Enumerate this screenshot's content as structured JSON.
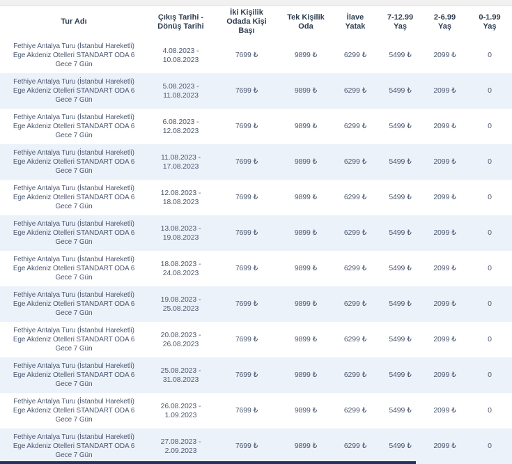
{
  "table": {
    "columns": [
      {
        "label": "Tur Adı"
      },
      {
        "label": "Çıkış Tarihi -\nDönüş Tarihi"
      },
      {
        "label": "İki Kişilik\nOdada Kişi\nBaşı"
      },
      {
        "label": "Tek Kişilik\nOda"
      },
      {
        "label": "İlave\nYatak"
      },
      {
        "label": "7-12.99\nYaş"
      },
      {
        "label": "2-6.99\nYaş"
      },
      {
        "label": "0-1.99\nYaş"
      }
    ],
    "rows": [
      {
        "tour": "Fethiye Antalya Turu (İstanbul Hareketli)\nEge Akdeniz Otelleri STANDART ODA 6\nGece 7 Gün",
        "dates": "4.08.2023 -\n10.08.2023",
        "double_pp": "7699 ₺",
        "single": "9899 ₺",
        "extra_bed": "6299 ₺",
        "age_7_12": "5499 ₺",
        "age_2_6": "2099 ₺",
        "age_0_1": "0"
      },
      {
        "tour": "Fethiye Antalya Turu (İstanbul Hareketli)\nEge Akdeniz Otelleri STANDART ODA 6\nGece 7 Gün",
        "dates": "5.08.2023 -\n11.08.2023",
        "double_pp": "7699 ₺",
        "single": "9899 ₺",
        "extra_bed": "6299 ₺",
        "age_7_12": "5499 ₺",
        "age_2_6": "2099 ₺",
        "age_0_1": "0"
      },
      {
        "tour": "Fethiye Antalya Turu (İstanbul Hareketli)\nEge Akdeniz Otelleri STANDART ODA 6\nGece 7 Gün",
        "dates": "6.08.2023 -\n12.08.2023",
        "double_pp": "7699 ₺",
        "single": "9899 ₺",
        "extra_bed": "6299 ₺",
        "age_7_12": "5499 ₺",
        "age_2_6": "2099 ₺",
        "age_0_1": "0"
      },
      {
        "tour": "Fethiye Antalya Turu (İstanbul Hareketli)\nEge Akdeniz Otelleri STANDART ODA 6\nGece 7 Gün",
        "dates": "11.08.2023 -\n17.08.2023",
        "double_pp": "7699 ₺",
        "single": "9899 ₺",
        "extra_bed": "6299 ₺",
        "age_7_12": "5499 ₺",
        "age_2_6": "2099 ₺",
        "age_0_1": "0"
      },
      {
        "tour": "Fethiye Antalya Turu (İstanbul Hareketli)\nEge Akdeniz Otelleri STANDART ODA 6\nGece 7 Gün",
        "dates": "12.08.2023 -\n18.08.2023",
        "double_pp": "7699 ₺",
        "single": "9899 ₺",
        "extra_bed": "6299 ₺",
        "age_7_12": "5499 ₺",
        "age_2_6": "2099 ₺",
        "age_0_1": "0"
      },
      {
        "tour": "Fethiye Antalya Turu (İstanbul Hareketli)\nEge Akdeniz Otelleri STANDART ODA 6\nGece 7 Gün",
        "dates": "13.08.2023 -\n19.08.2023",
        "double_pp": "7699 ₺",
        "single": "9899 ₺",
        "extra_bed": "6299 ₺",
        "age_7_12": "5499 ₺",
        "age_2_6": "2099 ₺",
        "age_0_1": "0"
      },
      {
        "tour": "Fethiye Antalya Turu (İstanbul Hareketli)\nEge Akdeniz Otelleri STANDART ODA 6\nGece 7 Gün",
        "dates": "18.08.2023 -\n24.08.2023",
        "double_pp": "7699 ₺",
        "single": "9899 ₺",
        "extra_bed": "6299 ₺",
        "age_7_12": "5499 ₺",
        "age_2_6": "2099 ₺",
        "age_0_1": "0"
      },
      {
        "tour": "Fethiye Antalya Turu (İstanbul Hareketli)\nEge Akdeniz Otelleri STANDART ODA 6\nGece 7 Gün",
        "dates": "19.08.2023 -\n25.08.2023",
        "double_pp": "7699 ₺",
        "single": "9899 ₺",
        "extra_bed": "6299 ₺",
        "age_7_12": "5499 ₺",
        "age_2_6": "2099 ₺",
        "age_0_1": "0"
      },
      {
        "tour": "Fethiye Antalya Turu (İstanbul Hareketli)\nEge Akdeniz Otelleri STANDART ODA 6\nGece 7 Gün",
        "dates": "20.08.2023 -\n26.08.2023",
        "double_pp": "7699 ₺",
        "single": "9899 ₺",
        "extra_bed": "6299 ₺",
        "age_7_12": "5499 ₺",
        "age_2_6": "2099 ₺",
        "age_0_1": "0"
      },
      {
        "tour": "Fethiye Antalya Turu (İstanbul Hareketli)\nEge Akdeniz Otelleri STANDART ODA 6\nGece 7 Gün",
        "dates": "25.08.2023 -\n31.08.2023",
        "double_pp": "7699 ₺",
        "single": "9899 ₺",
        "extra_bed": "6299 ₺",
        "age_7_12": "5499 ₺",
        "age_2_6": "2099 ₺",
        "age_0_1": "0"
      },
      {
        "tour": "Fethiye Antalya Turu (İstanbul Hareketli)\nEge Akdeniz Otelleri STANDART ODA 6\nGece 7 Gün",
        "dates": "26.08.2023 -\n1.09.2023",
        "double_pp": "7699 ₺",
        "single": "9899 ₺",
        "extra_bed": "6299 ₺",
        "age_7_12": "5499 ₺",
        "age_2_6": "2099 ₺",
        "age_0_1": "0"
      },
      {
        "tour": "Fethiye Antalya Turu (İstanbul Hareketli)\nEge Akdeniz Otelleri STANDART ODA 6\nGece 7 Gün",
        "dates": "27.08.2023 -\n2.09.2023",
        "double_pp": "7699 ₺",
        "single": "9899 ₺",
        "extra_bed": "6299 ₺",
        "age_7_12": "5499 ₺",
        "age_2_6": "2099 ₺",
        "age_0_1": "0"
      }
    ]
  },
  "colors": {
    "row_alt": "#ecf2fa",
    "header_text": "#2d3c50",
    "body_text": "#4b5870",
    "top_strip": "#f1f1f1",
    "bottom_bar": "#24325f"
  }
}
